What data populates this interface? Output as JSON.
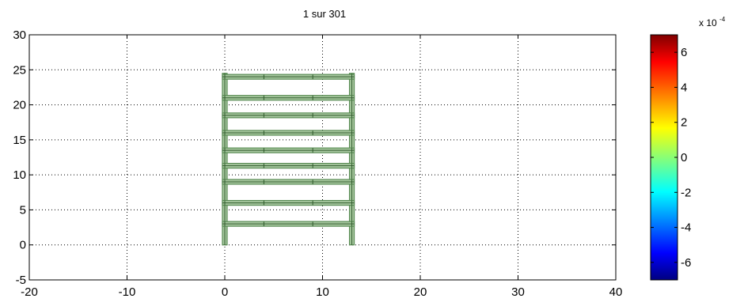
{
  "chart_data": {
    "type": "structure-plot",
    "title": "1 sur 301",
    "xlabel": "",
    "ylabel": "",
    "xlim": [
      -20,
      40
    ],
    "ylim": [
      -5,
      30
    ],
    "x_ticks": [
      -20,
      -10,
      0,
      10,
      20,
      30,
      40
    ],
    "y_ticks": [
      -5,
      0,
      5,
      10,
      15,
      20,
      25,
      30
    ],
    "grid": "dotted",
    "structure": {
      "color": "#5a8c55",
      "columns_x": [
        0,
        13
      ],
      "column_top": 24.5,
      "floor_levels_y": [
        3,
        6,
        9,
        11.3,
        13.5,
        16,
        18.5,
        21,
        24
      ],
      "floor_x_range": [
        0,
        13
      ],
      "floor_joints_x": [
        0,
        4,
        9,
        13
      ]
    },
    "colorbar": {
      "exponent_label": "x 10",
      "exponent_power": "-4",
      "range": [
        -7,
        7
      ],
      "ticks": [
        -6,
        -4,
        -2,
        0,
        2,
        4,
        6
      ],
      "colormap": "jet"
    }
  }
}
